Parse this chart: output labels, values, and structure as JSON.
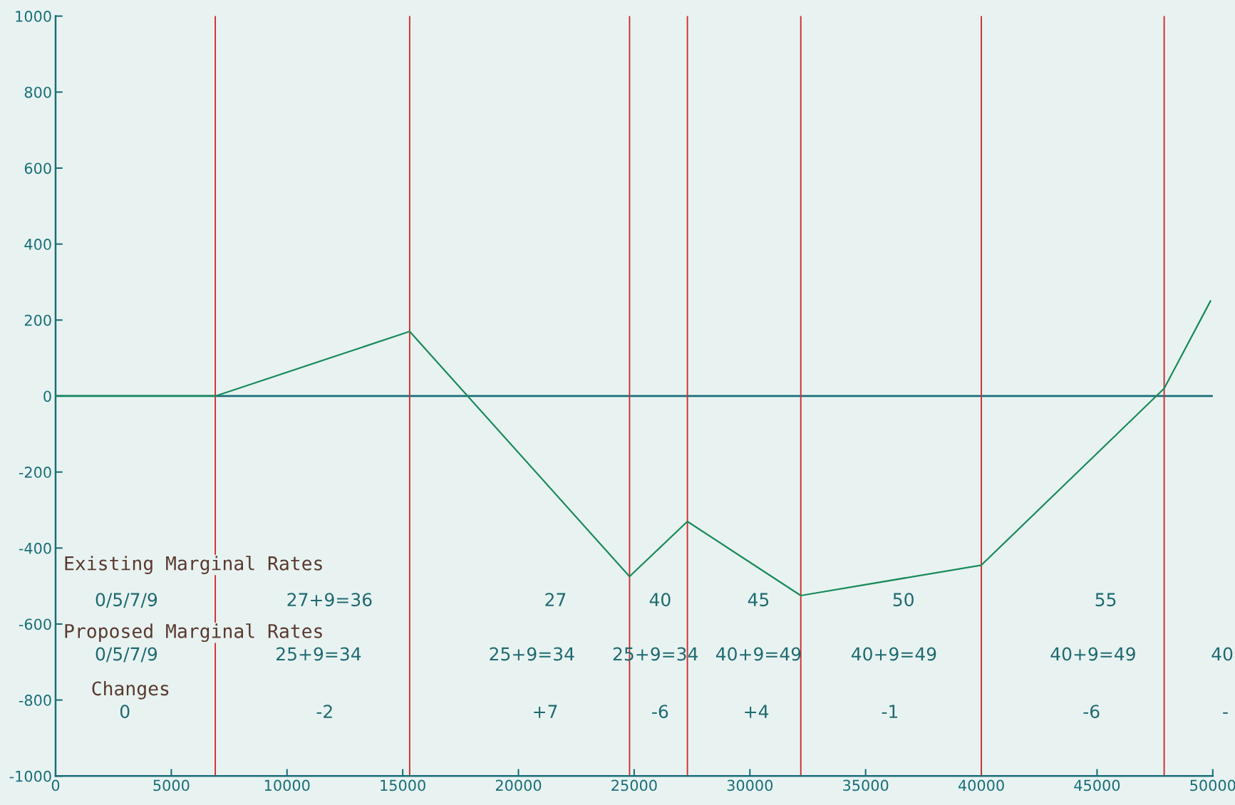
{
  "chart_data": {
    "type": "line",
    "x": [
      0,
      6900,
      15300,
      24800,
      27300,
      32200,
      40000,
      47900,
      49900
    ],
    "series": [
      {
        "color": "#1a8a5a",
        "values": [
          0,
          0,
          170,
          -475,
          -330,
          -525,
          -445,
          20,
          250
        ]
      }
    ],
    "xlim": [
      0,
      50000
    ],
    "xticks": [
      0,
      5000,
      10000,
      15000,
      20000,
      25000,
      30000,
      35000,
      40000,
      45000,
      50000
    ],
    "ylim": [
      -1000,
      1000
    ],
    "yticks": [
      -1000,
      -800,
      -600,
      -400,
      -200,
      0,
      200,
      400,
      600,
      800,
      1000
    ],
    "grid": false,
    "marker": "none",
    "line_style": "solid",
    "ref_lines": [
      {
        "axis": "y",
        "value": 0,
        "color": "#1a6e7a"
      },
      {
        "axis": "x",
        "value": 6900,
        "color": "#d03030"
      },
      {
        "axis": "x",
        "value": 15300,
        "color": "#d03030"
      },
      {
        "axis": "x",
        "value": 24800,
        "color": "#d03030"
      },
      {
        "axis": "x",
        "value": 27300,
        "color": "#d03030"
      },
      {
        "axis": "x",
        "value": 32200,
        "color": "#d03030"
      },
      {
        "axis": "x",
        "value": 40000,
        "color": "#d03030"
      },
      {
        "axis": "x",
        "value": 47900,
        "color": "#d03030"
      }
    ],
    "annotations": [
      "Existing Marginal Rates",
      "0/5/7/9",
      "27+9=36",
      "27",
      "40",
      "45",
      "50",
      "55",
      "Proposed Marginal Rates",
      "0/5/7/9",
      "25+9=34",
      "25+9=34",
      "25+9=34",
      "40+9=49",
      "40+9=49",
      "40+9=49",
      "40",
      "Changes",
      "0",
      "-2",
      "+7",
      "-6",
      "+4",
      "-1",
      "-6",
      "-"
    ]
  }
}
